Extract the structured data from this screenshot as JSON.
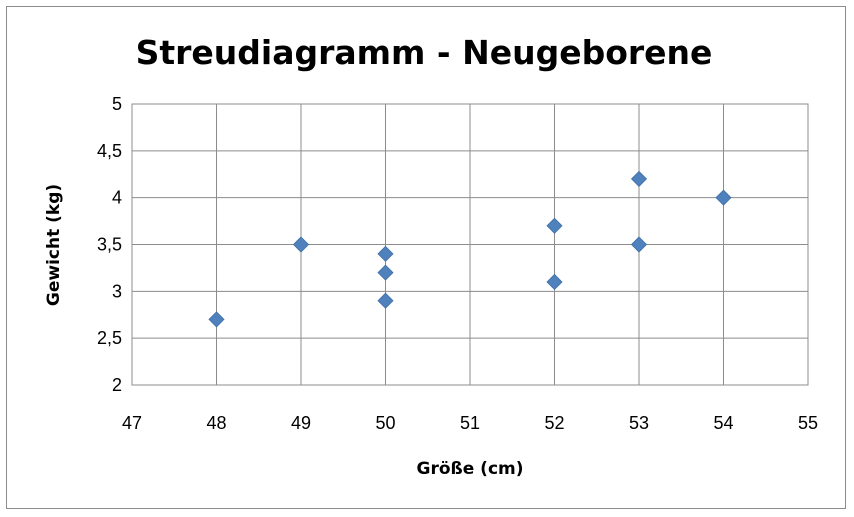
{
  "chart_data": {
    "type": "scatter",
    "title": "Streudiagramm - Neugeborene",
    "xlabel": "Größe (cm)",
    "ylabel": "Gewicht (kg)",
    "xlim": [
      47,
      55
    ],
    "ylim": [
      2,
      5
    ],
    "x_ticks": [
      "47",
      "48",
      "49",
      "50",
      "51",
      "52",
      "53",
      "54",
      "55"
    ],
    "y_ticks": [
      "2",
      "2,5",
      "3",
      "3,5",
      "4",
      "4,5",
      "5"
    ],
    "grid": true,
    "legend": "none",
    "marker": "diamond",
    "color": "#4F81BD",
    "points": [
      {
        "x": 48,
        "y": 2.7
      },
      {
        "x": 49,
        "y": 3.5
      },
      {
        "x": 50,
        "y": 3.4
      },
      {
        "x": 50,
        "y": 3.2
      },
      {
        "x": 50,
        "y": 2.9
      },
      {
        "x": 52,
        "y": 3.7
      },
      {
        "x": 52,
        "y": 3.1
      },
      {
        "x": 53,
        "y": 4.2
      },
      {
        "x": 53,
        "y": 3.5
      },
      {
        "x": 54,
        "y": 4.0
      }
    ]
  }
}
